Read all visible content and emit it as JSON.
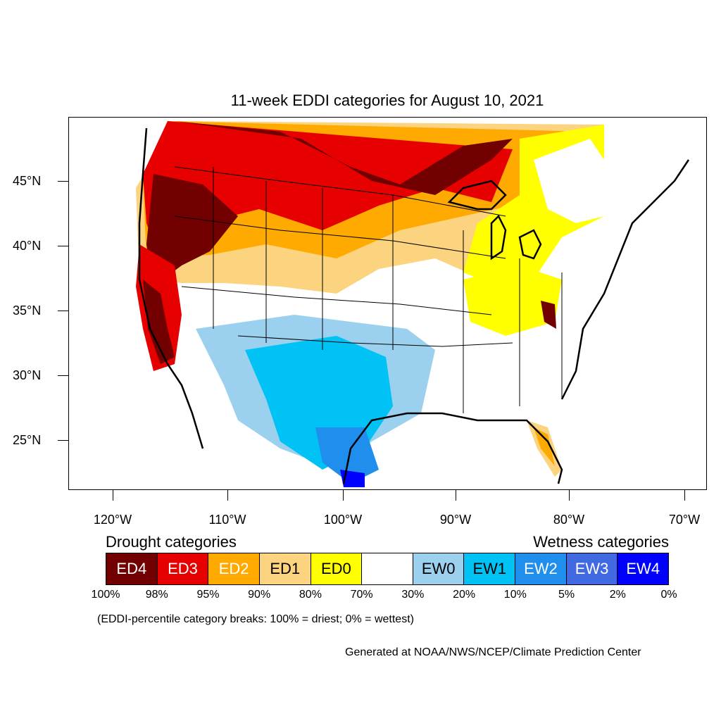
{
  "title": "11-week EDDI categories for August 10, 2021",
  "map": {
    "latitude_labels": [
      "45°N",
      "40°N",
      "35°N",
      "30°N",
      "25°N"
    ],
    "longitude_labels": [
      "120°W",
      "110°W",
      "100°W",
      "90°W",
      "80°W",
      "70°W"
    ],
    "lat_range": [
      21,
      50
    ],
    "lon_range": [
      -124,
      -68.5
    ]
  },
  "legend": {
    "drought_heading": "Drought categories",
    "wetness_heading": "Wetness categories",
    "categories": [
      {
        "label": "ED4",
        "color": "#730000",
        "text_color": "#ffffff"
      },
      {
        "label": "ED3",
        "color": "#e60000",
        "text_color": "#ffffff"
      },
      {
        "label": "ED2",
        "color": "#ffaa00",
        "text_color": "#ffffff"
      },
      {
        "label": "ED1",
        "color": "#fcd37f",
        "text_color": "#000000"
      },
      {
        "label": "ED0",
        "color": "#ffff00",
        "text_color": "#000000"
      },
      {
        "label": "",
        "color": "#ffffff",
        "text_color": "#000000"
      },
      {
        "label": "EW0",
        "color": "#9bd1ef",
        "text_color": "#000000"
      },
      {
        "label": "EW1",
        "color": "#00c2f5",
        "text_color": "#000000"
      },
      {
        "label": "EW2",
        "color": "#1f8eec",
        "text_color": "#ffffff"
      },
      {
        "label": "EW3",
        "color": "#4169e1",
        "text_color": "#ffffff"
      },
      {
        "label": "EW4",
        "color": "#0000ff",
        "text_color": "#ffffff"
      }
    ],
    "percentiles": [
      "100%",
      "98%",
      "95%",
      "90%",
      "80%",
      "70%",
      "30%",
      "20%",
      "10%",
      "5%",
      "2%",
      "0%"
    ]
  },
  "note": "(EDDI-percentile category breaks: 100% = driest; 0% = wettest)",
  "credit": "Generated at NOAA/NWS/NCEP/Climate Prediction Center"
}
